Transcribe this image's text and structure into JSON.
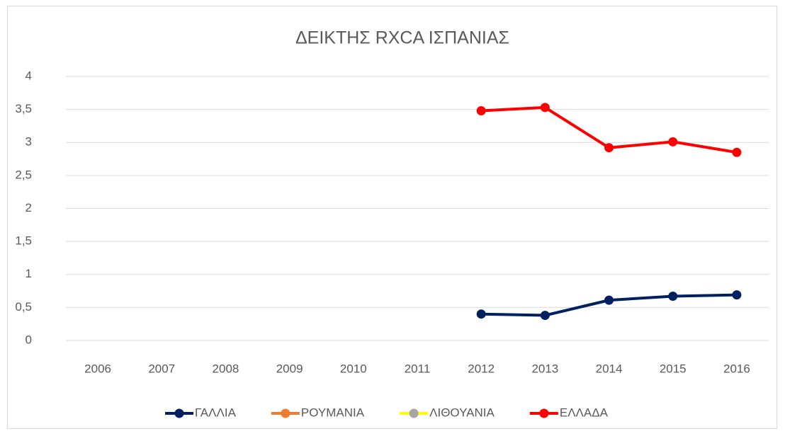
{
  "chart_data": {
    "type": "line",
    "title": "ΔΕΙΚΤΗΣ RXCA ΙΣΠΑΝΙΑΣ",
    "categories": [
      "2006",
      "2007",
      "2008",
      "2009",
      "2010",
      "2011",
      "2012",
      "2013",
      "2014",
      "2015",
      "2016"
    ],
    "series": [
      {
        "name": "ΓΑΛΛΙΑ",
        "color": "#002060",
        "values": [
          null,
          null,
          null,
          null,
          null,
          null,
          0.4,
          0.38,
          0.61,
          0.67,
          0.69
        ]
      },
      {
        "name": "ΡΟΥΜΑΝΙΑ",
        "color": "#ed7d31",
        "values": [
          null,
          null,
          null,
          null,
          null,
          null,
          null,
          null,
          null,
          null,
          null
        ]
      },
      {
        "name": "ΛΙΘΟΥΑΝΙΑ",
        "color": "#ffff00",
        "marker_color": "#a5a5a5",
        "values": [
          null,
          null,
          null,
          null,
          null,
          null,
          null,
          null,
          null,
          null,
          null
        ]
      },
      {
        "name": "ΕΛΛΑΔΑ",
        "color": "#ff0000",
        "values": [
          null,
          null,
          null,
          null,
          null,
          null,
          3.48,
          3.53,
          2.92,
          3.01,
          2.85
        ]
      }
    ],
    "ylim": [
      0,
      4
    ],
    "yticks": [
      0,
      {
        "value": 0.5,
        "label": "0,5"
      },
      1,
      {
        "value": 1.5,
        "label": "1,5"
      },
      2,
      {
        "value": 2.5,
        "label": "2,5"
      },
      3,
      {
        "value": 3.5,
        "label": "3,5"
      },
      4
    ],
    "grid": true,
    "legend": "bottom"
  }
}
